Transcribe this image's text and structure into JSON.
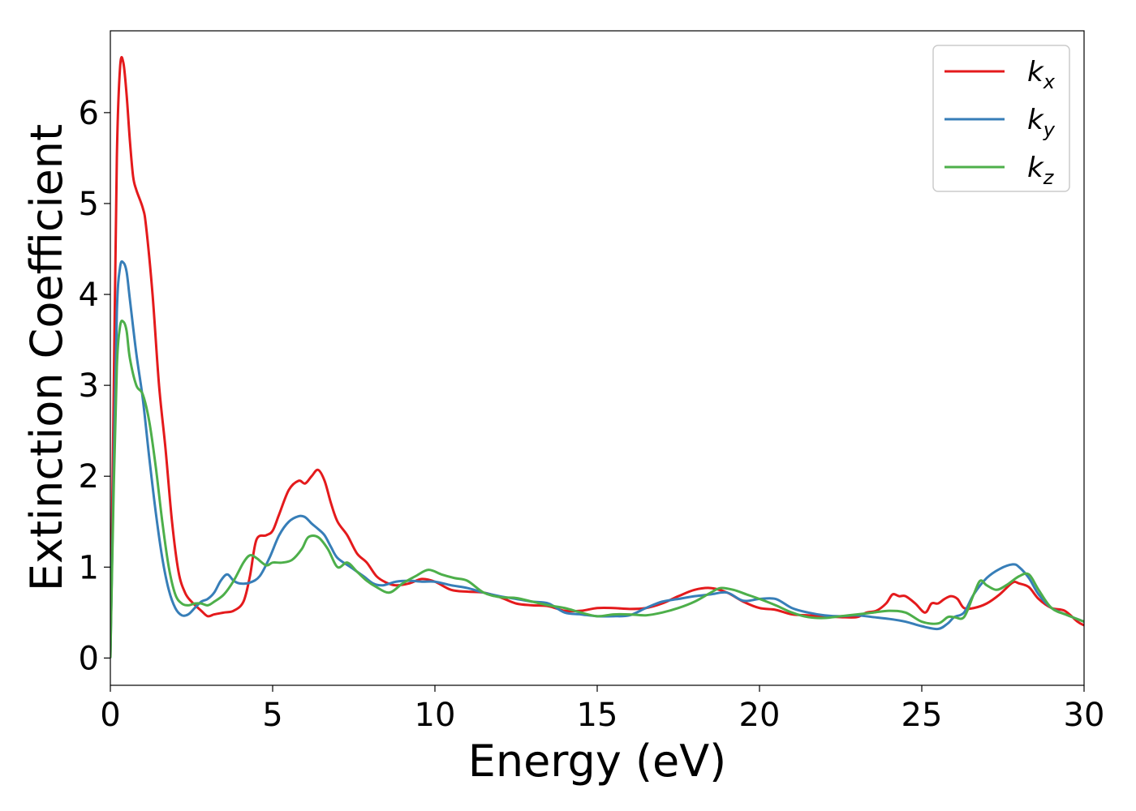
{
  "chart_data": {
    "type": "line",
    "title": "",
    "xlabel": "Energy (eV)",
    "ylabel": "Extinction Coefficient",
    "xlim": [
      0,
      30
    ],
    "ylim": [
      -0.3,
      6.9
    ],
    "xticks": [
      "0",
      "5",
      "10",
      "15",
      "20",
      "25",
      "30"
    ],
    "yticks": [
      "0",
      "1",
      "2",
      "3",
      "4",
      "5",
      "6"
    ],
    "grid": false,
    "legend_position": "top-right",
    "series": [
      {
        "name": "k",
        "subscript": "x",
        "color": "#e41a1c",
        "x": [
          0,
          0.1,
          0.2,
          0.3,
          0.4,
          0.5,
          0.6,
          0.7,
          0.8,
          1.0,
          1.1,
          1.3,
          1.5,
          1.7,
          1.9,
          2.1,
          2.3,
          2.5,
          2.8,
          3.0,
          3.2,
          3.5,
          3.8,
          4.1,
          4.3,
          4.5,
          4.8,
          5.0,
          5.2,
          5.5,
          5.8,
          6.0,
          6.2,
          6.4,
          6.6,
          6.8,
          7.0,
          7.3,
          7.6,
          7.9,
          8.2,
          8.5,
          8.8,
          9.2,
          9.6,
          10.0,
          10.5,
          11.0,
          11.5,
          12.0,
          12.5,
          13.0,
          13.5,
          14.0,
          14.5,
          15.0,
          15.5,
          16.0,
          16.5,
          17.0,
          17.5,
          18.0,
          18.5,
          19.0,
          19.5,
          20.0,
          20.5,
          21.0,
          21.5,
          22.0,
          22.5,
          23.0,
          23.3,
          23.6,
          23.9,
          24.1,
          24.3,
          24.5,
          24.8,
          25.1,
          25.3,
          25.5,
          25.7,
          25.9,
          26.1,
          26.3,
          26.6,
          27.0,
          27.4,
          27.8,
          28.0,
          28.3,
          28.6,
          29.0,
          29.4,
          29.8,
          30.0
        ],
        "y": [
          0,
          2.8,
          5.5,
          6.5,
          6.55,
          6.2,
          5.7,
          5.3,
          5.15,
          4.95,
          4.75,
          4.0,
          3.0,
          2.3,
          1.5,
          0.95,
          0.72,
          0.62,
          0.52,
          0.46,
          0.48,
          0.5,
          0.52,
          0.62,
          0.9,
          1.3,
          1.35,
          1.4,
          1.58,
          1.85,
          1.95,
          1.92,
          2.0,
          2.07,
          1.95,
          1.7,
          1.5,
          1.35,
          1.15,
          1.05,
          0.9,
          0.83,
          0.8,
          0.82,
          0.87,
          0.84,
          0.75,
          0.73,
          0.72,
          0.67,
          0.6,
          0.58,
          0.57,
          0.52,
          0.52,
          0.55,
          0.55,
          0.54,
          0.55,
          0.6,
          0.68,
          0.75,
          0.77,
          0.72,
          0.62,
          0.55,
          0.53,
          0.48,
          0.47,
          0.46,
          0.45,
          0.45,
          0.5,
          0.52,
          0.6,
          0.7,
          0.68,
          0.68,
          0.6,
          0.5,
          0.6,
          0.6,
          0.65,
          0.68,
          0.65,
          0.55,
          0.55,
          0.6,
          0.7,
          0.83,
          0.82,
          0.78,
          0.65,
          0.55,
          0.52,
          0.4,
          0.36
        ]
      },
      {
        "name": "k",
        "subscript": "y",
        "color": "#377eb8",
        "x": [
          0,
          0.1,
          0.2,
          0.3,
          0.4,
          0.5,
          0.6,
          0.8,
          1.0,
          1.2,
          1.4,
          1.6,
          1.8,
          2.0,
          2.2,
          2.4,
          2.6,
          2.8,
          3.0,
          3.2,
          3.4,
          3.6,
          3.8,
          4.0,
          4.3,
          4.6,
          4.9,
          5.2,
          5.5,
          5.8,
          6.0,
          6.2,
          6.4,
          6.6,
          6.8,
          7.0,
          7.4,
          7.8,
          8.1,
          8.4,
          8.8,
          9.2,
          9.6,
          10.0,
          10.5,
          11.0,
          11.5,
          12.0,
          12.5,
          13.0,
          13.5,
          14.0,
          14.5,
          15.0,
          15.5,
          16.0,
          16.5,
          17.0,
          17.5,
          18.0,
          18.5,
          19.0,
          19.5,
          20.0,
          20.5,
          21.0,
          21.5,
          22.0,
          22.5,
          23.0,
          23.5,
          24.0,
          24.5,
          25.0,
          25.5,
          25.8,
          26.0,
          26.3,
          26.6,
          27.0,
          27.4,
          27.8,
          28.0,
          28.3,
          28.6,
          29.0,
          29.5,
          30.0
        ],
        "y": [
          0,
          2.0,
          3.8,
          4.3,
          4.35,
          4.25,
          3.95,
          3.35,
          2.85,
          2.2,
          1.6,
          1.1,
          0.75,
          0.55,
          0.47,
          0.48,
          0.55,
          0.62,
          0.65,
          0.72,
          0.85,
          0.92,
          0.85,
          0.82,
          0.83,
          0.9,
          1.1,
          1.35,
          1.5,
          1.56,
          1.55,
          1.48,
          1.42,
          1.35,
          1.22,
          1.1,
          1.0,
          0.9,
          0.82,
          0.8,
          0.84,
          0.85,
          0.84,
          0.84,
          0.8,
          0.77,
          0.72,
          0.68,
          0.65,
          0.62,
          0.6,
          0.5,
          0.48,
          0.46,
          0.46,
          0.47,
          0.55,
          0.62,
          0.65,
          0.68,
          0.7,
          0.72,
          0.63,
          0.65,
          0.65,
          0.55,
          0.5,
          0.47,
          0.46,
          0.47,
          0.45,
          0.43,
          0.4,
          0.35,
          0.32,
          0.38,
          0.45,
          0.5,
          0.7,
          0.88,
          0.98,
          1.03,
          1.0,
          0.88,
          0.7,
          0.55,
          0.47,
          0.4
        ]
      },
      {
        "name": "k",
        "subscript": "z",
        "color": "#4daf4a",
        "x": [
          0,
          0.1,
          0.2,
          0.3,
          0.4,
          0.5,
          0.6,
          0.8,
          1.0,
          1.2,
          1.4,
          1.6,
          1.8,
          2.0,
          2.2,
          2.4,
          2.6,
          2.8,
          3.0,
          3.2,
          3.5,
          3.8,
          4.1,
          4.3,
          4.5,
          4.8,
          5.0,
          5.3,
          5.6,
          5.9,
          6.1,
          6.4,
          6.7,
          7.0,
          7.3,
          7.6,
          7.9,
          8.2,
          8.6,
          9.0,
          9.4,
          9.8,
          10.2,
          10.6,
          11.0,
          11.5,
          12.0,
          12.5,
          13.0,
          13.5,
          14.0,
          14.5,
          15.0,
          15.5,
          16.0,
          16.5,
          17.0,
          17.5,
          18.0,
          18.5,
          18.8,
          19.2,
          19.6,
          20.0,
          20.5,
          21.0,
          21.5,
          22.0,
          22.5,
          23.0,
          23.5,
          24.0,
          24.5,
          25.0,
          25.5,
          25.8,
          26.0,
          26.3,
          26.6,
          26.8,
          27.0,
          27.3,
          27.6,
          28.0,
          28.3,
          28.6,
          29.0,
          29.5,
          30.0
        ],
        "y": [
          0,
          1.8,
          3.2,
          3.65,
          3.7,
          3.6,
          3.3,
          3.0,
          2.9,
          2.6,
          2.1,
          1.5,
          1.0,
          0.7,
          0.6,
          0.58,
          0.6,
          0.6,
          0.58,
          0.62,
          0.7,
          0.85,
          1.05,
          1.13,
          1.1,
          1.02,
          1.05,
          1.05,
          1.08,
          1.2,
          1.33,
          1.33,
          1.2,
          1.0,
          1.05,
          0.95,
          0.85,
          0.78,
          0.72,
          0.82,
          0.9,
          0.97,
          0.92,
          0.88,
          0.85,
          0.72,
          0.67,
          0.66,
          0.62,
          0.58,
          0.55,
          0.5,
          0.46,
          0.48,
          0.48,
          0.47,
          0.5,
          0.55,
          0.62,
          0.72,
          0.77,
          0.75,
          0.7,
          0.65,
          0.58,
          0.5,
          0.45,
          0.44,
          0.46,
          0.48,
          0.5,
          0.52,
          0.5,
          0.4,
          0.38,
          0.45,
          0.45,
          0.45,
          0.7,
          0.85,
          0.8,
          0.75,
          0.8,
          0.9,
          0.92,
          0.75,
          0.55,
          0.47,
          0.4
        ]
      }
    ]
  }
}
